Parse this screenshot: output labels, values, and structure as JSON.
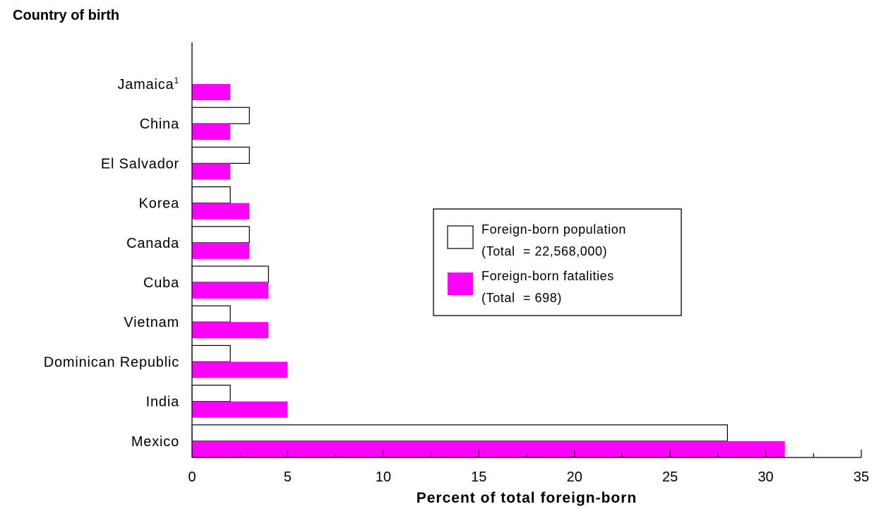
{
  "chart_data": {
    "type": "bar",
    "orientation": "horizontal",
    "y_axis_title": "Country of birth",
    "categories": [
      "Jamaica",
      "China",
      "El Salvador",
      "Korea",
      "Canada",
      "Cuba",
      "Vietnam",
      "Dominican Republic",
      "India",
      "Mexico"
    ],
    "category_superscripts": [
      "1",
      "",
      "",
      "",
      "",
      "",
      "",
      "",
      "",
      ""
    ],
    "series": [
      {
        "name_line1": "Foreign-born population",
        "name_line2": "(Total  = 22,568,000)",
        "color": "#ffffff",
        "values": [
          null,
          3,
          3,
          2,
          3,
          4,
          2,
          2,
          2,
          28
        ]
      },
      {
        "name_line1": "Foreign-born fatalities",
        "name_line2": "(Total  = 698)",
        "color": "#ff00ff",
        "values": [
          2,
          2,
          2,
          3,
          3,
          4,
          4,
          5,
          5,
          31
        ]
      }
    ],
    "xlabel": "Percent of total foreign-born",
    "xlim": [
      0,
      35
    ],
    "xticks": [
      "0",
      "5",
      "10",
      "15",
      "20",
      "25",
      "30",
      "35"
    ],
    "grid": false,
    "legend_position": "center-right"
  }
}
